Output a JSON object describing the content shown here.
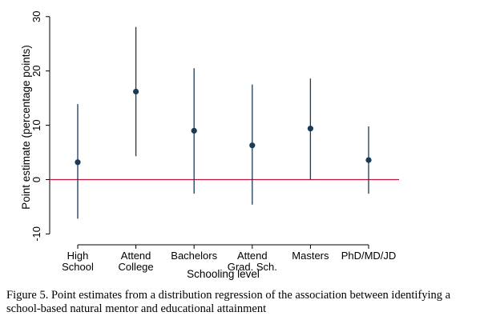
{
  "chart_data": {
    "type": "scatter",
    "subtype": "point-estimates-with-confidence-intervals",
    "categories": [
      [
        "High",
        "School"
      ],
      [
        "Attend",
        "College"
      ],
      [
        "Bachelors"
      ],
      [
        "Attend",
        "Grad. Sch."
      ],
      [
        "Masters"
      ],
      [
        "PhD/MD/JD"
      ]
    ],
    "series": [
      {
        "estimates": [
          3.2,
          16.2,
          9.0,
          6.3,
          9.4,
          3.6
        ],
        "ci_low": [
          -7.2,
          4.3,
          -2.6,
          -4.6,
          0.0,
          -2.6
        ],
        "ci_high": [
          13.9,
          28.1,
          20.5,
          17.5,
          18.6,
          9.8
        ]
      }
    ],
    "xlabel": "Schooling level",
    "ylabel": "Point estimate (percentage points)",
    "ylim": [
      -12,
      31
    ],
    "yticks": [
      -10,
      0,
      10,
      20,
      30
    ],
    "reference_line": {
      "y": 0,
      "color": "#c0143c"
    },
    "colors": {
      "point": "#1a3a56",
      "interval": "#1a3a56"
    },
    "grid": false,
    "legend": "none"
  },
  "caption": {
    "line1": "Figure 5. Point estimates from a distribution regression of the association between identifying a",
    "line2": "school-based natural mentor and educational attainment"
  }
}
